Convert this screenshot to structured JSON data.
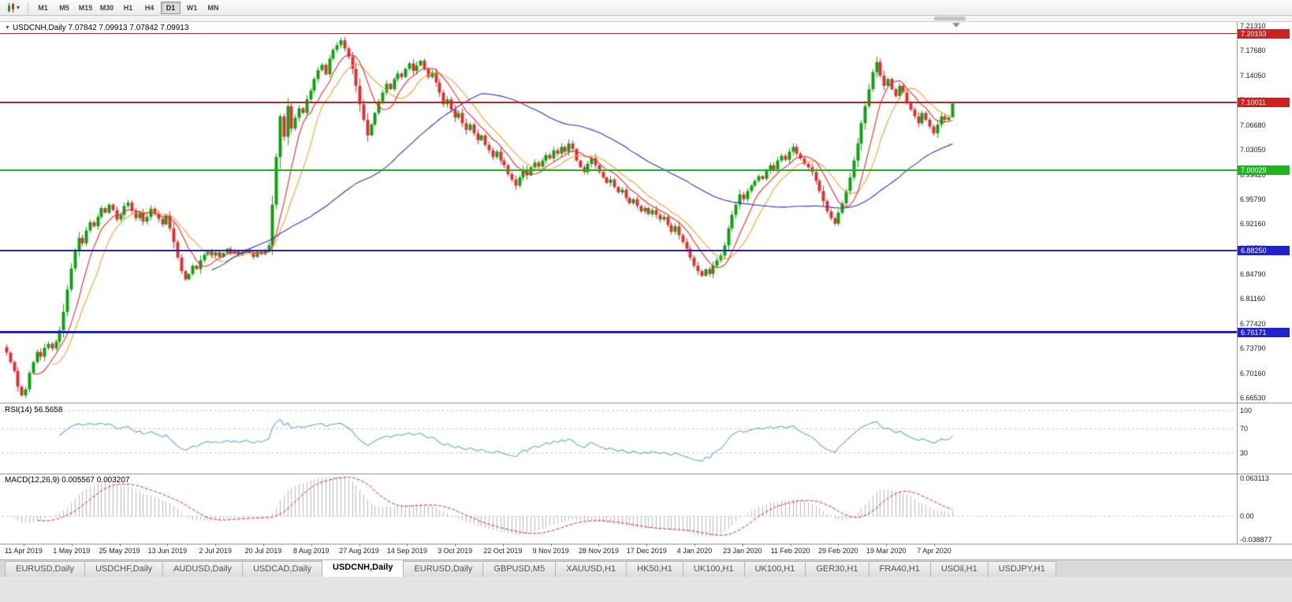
{
  "toolbar": {
    "timeframes": [
      "M1",
      "M5",
      "M15",
      "M30",
      "H1",
      "H4",
      "D1",
      "W1",
      "MN"
    ],
    "active_timeframe": "D1",
    "chart_mode_icon": "candlestick-chart-icon",
    "dropdown_icon": "chevron-down-icon"
  },
  "rsi_panel": {
    "label": "RSI(14) 56.5658"
  },
  "macd_panel": {
    "label": "MACD(12,26,9) 0.005567 0.003207"
  },
  "tabs": {
    "active_index": 4,
    "items": [
      "EURUSD,Daily",
      "USDCHF,Daily",
      "AUDUSD,Daily",
      "USDCAD,Daily",
      "USDCNH,Daily",
      "EURUSD,Daily",
      "GBPUSD,M5",
      "XAUUSD,H1",
      "HK50,H1",
      "UK100,H1",
      "UK100,H1",
      "GER30,H1",
      "FRA40,H1",
      "USOil,H1",
      "USDJPY,H1"
    ]
  },
  "chart_data": {
    "type": "candlestick",
    "symbol": "USDCNH",
    "period": "Daily",
    "title": "USDCNH,Daily 7.07842 7.09913 7.07842 7.09913",
    "ohlc_current": {
      "open": 7.07842,
      "high": 7.09913,
      "low": 7.07842,
      "close": 7.09913
    },
    "y_range": {
      "min": 6.6584,
      "max": 7.2189
    },
    "y_tick_labels": [
      "7.21310",
      "7.17680",
      "7.14050",
      "7.10420",
      "7.06680",
      "7.03050",
      "6.99420",
      "6.95790",
      "6.92160",
      "6.88530",
      "6.84790",
      "6.81160",
      "6.77420",
      "6.73790",
      "6.70160",
      "6.66530"
    ],
    "x_tick_labels": [
      "11 Apr 2019",
      "1 May 2019",
      "25 May 2019",
      "13 Jun 2019",
      "2 Jul 2019",
      "20 Jul 2019",
      "8 Aug 2019",
      "27 Aug 2019",
      "14 Sep 2019",
      "3 Oct 2019",
      "22 Oct 2019",
      "9 Nov 2019",
      "28 Nov 2019",
      "17 Dec 2019",
      "4 Jan 2020",
      "23 Jan 2020",
      "11 Feb 2020",
      "29 Feb 2020",
      "19 Mar 2020",
      "7 Apr 2020"
    ],
    "horizontal_lines": [
      {
        "price": 7.20193,
        "label": "7.20193",
        "color": "#cc2222",
        "thickness": 1
      },
      {
        "price": 7.10011,
        "label": "7.10011",
        "color": "#cc2222",
        "thickness": 2
      },
      {
        "price": 7.00029,
        "label": "7.00029",
        "color": "#22b322",
        "thickness": 2
      },
      {
        "price": 6.8825,
        "label": "6.88250",
        "color": "#2222cc",
        "thickness": 2
      },
      {
        "price": 6.76171,
        "label": "6.76171",
        "color": "#2222cc",
        "thickness": 3
      }
    ],
    "closes": [
      6.732,
      6.718,
      6.705,
      6.682,
      6.669,
      6.678,
      6.702,
      6.718,
      6.733,
      6.726,
      6.739,
      6.745,
      6.738,
      6.748,
      6.765,
      6.792,
      6.825,
      6.856,
      6.882,
      6.901,
      6.893,
      6.912,
      6.924,
      6.918,
      6.932,
      6.945,
      6.938,
      6.95,
      6.942,
      6.928,
      6.935,
      6.948,
      6.953,
      6.941,
      6.93,
      6.938,
      6.925,
      6.932,
      6.944,
      6.936,
      6.929,
      6.921,
      6.934,
      6.915,
      6.895,
      6.872,
      6.852,
      6.84,
      6.848,
      6.86,
      6.855,
      6.868,
      6.876,
      6.882,
      6.875,
      6.88,
      6.873,
      6.879,
      6.885,
      6.878,
      6.882,
      6.876,
      6.88,
      6.884,
      6.879,
      6.873,
      6.881,
      6.877,
      6.883,
      6.89,
      6.95,
      7.02,
      7.08,
      7.05,
      7.095,
      7.062,
      7.078,
      7.092,
      7.085,
      7.105,
      7.118,
      7.135,
      7.148,
      7.156,
      7.142,
      7.165,
      7.178,
      7.185,
      7.192,
      7.18,
      7.168,
      7.15,
      7.125,
      7.098,
      7.075,
      7.052,
      7.068,
      7.085,
      7.102,
      7.115,
      7.128,
      7.12,
      7.135,
      7.143,
      7.138,
      7.15,
      7.158,
      7.147,
      7.155,
      7.162,
      7.15,
      7.138,
      7.145,
      7.13,
      7.115,
      7.098,
      7.105,
      7.09,
      7.078,
      7.085,
      7.07,
      7.06,
      7.068,
      7.055,
      7.045,
      7.052,
      7.038,
      7.03,
      7.02,
      7.028,
      7.015,
      7.008,
      6.995,
      6.987,
      6.978,
      6.99,
      7.002,
      6.993,
      7.005,
      7.012,
      7.006,
      7.015,
      7.023,
      7.018,
      7.03,
      7.025,
      7.035,
      7.028,
      7.04,
      7.032,
      7.015,
      7.005,
      6.998,
      7.01,
      7.018,
      7.008,
      6.998,
      6.99,
      6.982,
      6.987,
      6.976,
      6.968,
      6.972,
      6.96,
      6.952,
      6.958,
      6.948,
      6.94,
      6.945,
      6.936,
      6.942,
      6.935,
      6.928,
      6.932,
      6.92,
      6.91,
      6.918,
      6.905,
      6.895,
      6.885,
      6.872,
      6.86,
      6.852,
      6.845,
      6.855,
      6.848,
      6.86,
      6.868,
      6.875,
      6.89,
      6.915,
      6.935,
      6.95,
      6.965,
      6.958,
      6.97,
      6.978,
      6.985,
      6.992,
      6.988,
      7.0,
      7.008,
      7.002,
      7.015,
      7.022,
      7.016,
      7.028,
      7.035,
      7.025,
      7.018,
      7.01,
      7.005,
      6.998,
      6.985,
      6.97,
      6.955,
      6.94,
      6.93,
      6.922,
      6.938,
      6.952,
      6.97,
      6.99,
      7.015,
      7.04,
      7.07,
      7.095,
      7.12,
      7.145,
      7.16,
      7.14,
      7.125,
      7.135,
      7.12,
      7.11,
      7.125,
      7.115,
      7.1,
      7.09,
      7.08,
      7.07,
      7.085,
      7.075,
      7.065,
      7.055,
      7.068,
      7.08,
      7.075,
      7.07842,
      7.09913
    ],
    "overlays": {
      "ma_fast": {
        "period": 8,
        "color": "#e32929"
      },
      "ma_mid": {
        "period": 13,
        "color": "#efa030"
      },
      "ma_slow": {
        "period": 55,
        "color": "#2433cc"
      }
    },
    "rsi": {
      "period": 14,
      "value_text": "56.5658",
      "levels": [
        100,
        70,
        30
      ],
      "axis_labels": [
        "100",
        "70",
        "30"
      ]
    },
    "macd": {
      "fast": 12,
      "slow": 26,
      "signal": 9,
      "value_main": "0.005567",
      "value_signal": "0.003207",
      "axis_labels": [
        "0.063113",
        "0.00",
        "-0.038877"
      ]
    },
    "colors": {
      "candle_up": "#10a010",
      "candle_down": "#dc3232",
      "rsi_line": "#66a8d8",
      "macd_histogram": "#b8b8b8",
      "macd_signal": "#dd2222"
    }
  }
}
